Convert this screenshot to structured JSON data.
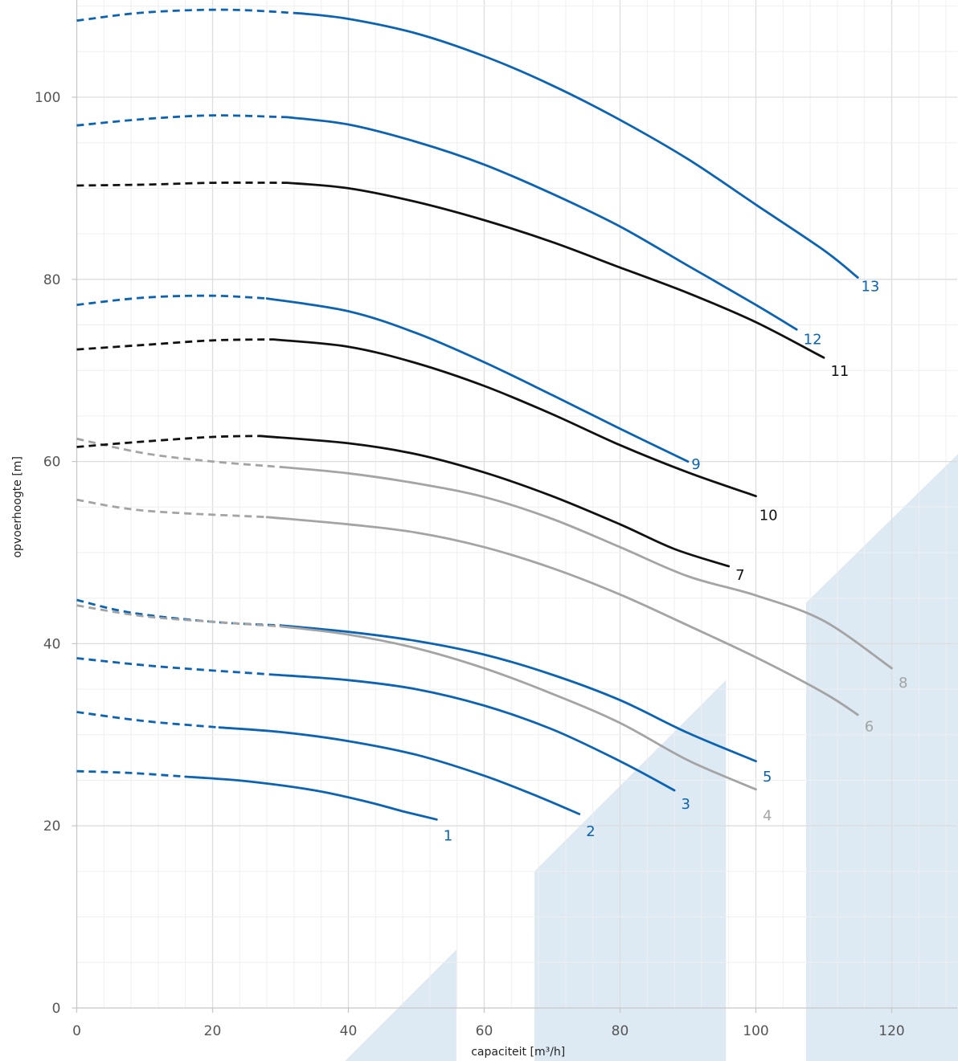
{
  "chart_data": {
    "type": "line",
    "xlabel": "capaciteit [m³/h]",
    "ylabel": "opvoerhoogte [m]",
    "xlim": [
      0,
      130
    ],
    "ylim": [
      0,
      110
    ],
    "x_ticks": [
      {
        "value": 0,
        "label": "0"
      },
      {
        "value": 20,
        "label": "20"
      },
      {
        "value": 40,
        "label": "40"
      },
      {
        "value": 60,
        "label": "60"
      },
      {
        "value": 80,
        "label": "80"
      },
      {
        "value": 100,
        "label": "100"
      },
      {
        "value": 120,
        "label": "120"
      }
    ],
    "y_ticks": [
      {
        "value": 0,
        "label": "0"
      },
      {
        "value": 20,
        "label": "20"
      },
      {
        "value": 40,
        "label": "40"
      },
      {
        "value": 60,
        "label": "60"
      },
      {
        "value": 80,
        "label": "80"
      },
      {
        "value": 100,
        "label": "100"
      }
    ],
    "minor_grid_x": 5,
    "minor_grid_y": 4,
    "grid": true,
    "colors": {
      "blue": "#0a63b4",
      "black": "#111111",
      "gray": "#a4a4a4",
      "region": "#dde9f3",
      "grid_major": "#dddddd",
      "grid_minor": "#efefef"
    },
    "shaded_regions": [
      {
        "points": [
          [
            39.5,
            -6
          ],
          [
            55.9,
            6.4
          ],
          [
            55.9,
            -6
          ]
        ]
      },
      {
        "points": [
          [
            67.4,
            -6
          ],
          [
            67.4,
            15
          ],
          [
            95.6,
            36
          ],
          [
            95.6,
            -6
          ]
        ]
      },
      {
        "points": [
          [
            107.4,
            -6
          ],
          [
            107.4,
            44.5
          ],
          [
            130,
            61
          ],
          [
            130,
            -6
          ]
        ]
      }
    ],
    "series": [
      {
        "label": "1",
        "color": "blue",
        "dashed": [
          [
            0,
            26.0
          ],
          [
            8,
            25.8
          ],
          [
            16,
            25.4
          ]
        ],
        "solid": [
          [
            16,
            25.4
          ],
          [
            25,
            24.9
          ],
          [
            35,
            23.9
          ],
          [
            43,
            22.6
          ],
          [
            48,
            21.6
          ],
          [
            53,
            20.7
          ]
        ],
        "label_at": [
          54,
          19.0
        ]
      },
      {
        "label": "2",
        "color": "blue",
        "dashed": [
          [
            0,
            32.5
          ],
          [
            10,
            31.5
          ],
          [
            21,
            30.8
          ]
        ],
        "solid": [
          [
            21,
            30.8
          ],
          [
            30,
            30.3
          ],
          [
            40,
            29.3
          ],
          [
            50,
            27.8
          ],
          [
            60,
            25.5
          ],
          [
            68,
            23.2
          ],
          [
            74,
            21.3
          ]
        ],
        "label_at": [
          75,
          19.5
        ]
      },
      {
        "label": "3",
        "color": "blue",
        "dashed": [
          [
            0,
            38.4
          ],
          [
            12,
            37.5
          ],
          [
            29,
            36.6
          ]
        ],
        "solid": [
          [
            29,
            36.6
          ],
          [
            40,
            36.0
          ],
          [
            50,
            35.0
          ],
          [
            60,
            33.2
          ],
          [
            70,
            30.6
          ],
          [
            80,
            27.1
          ],
          [
            88,
            23.9
          ]
        ],
        "label_at": [
          89,
          22.5
        ]
      },
      {
        "label": "5",
        "color": "blue",
        "dashed": [
          [
            0,
            44.8
          ],
          [
            8,
            43.4
          ],
          [
            20,
            42.4
          ],
          [
            30,
            42.0
          ]
        ],
        "solid": [
          [
            30,
            42.0
          ],
          [
            40,
            41.3
          ],
          [
            50,
            40.3
          ],
          [
            60,
            38.8
          ],
          [
            70,
            36.6
          ],
          [
            80,
            33.8
          ],
          [
            90,
            30.2
          ],
          [
            100,
            27.1
          ]
        ],
        "label_at": [
          101,
          25.5
        ]
      },
      {
        "label": "4",
        "color": "gray",
        "dashed": [
          [
            0,
            44.2
          ],
          [
            10,
            43.0
          ],
          [
            22,
            42.3
          ],
          [
            30,
            41.9
          ]
        ],
        "solid": [
          [
            30,
            41.9
          ],
          [
            40,
            41.0
          ],
          [
            50,
            39.5
          ],
          [
            60,
            37.3
          ],
          [
            70,
            34.5
          ],
          [
            80,
            31.3
          ],
          [
            90,
            27.2
          ],
          [
            100,
            24.0
          ]
        ],
        "label_at": [
          101,
          21.2
        ]
      },
      {
        "label": "6",
        "color": "gray",
        "dashed": [
          [
            0,
            55.8
          ],
          [
            10,
            54.6
          ],
          [
            28,
            53.9
          ]
        ],
        "solid": [
          [
            28,
            53.9
          ],
          [
            40,
            53.1
          ],
          [
            50,
            52.2
          ],
          [
            60,
            50.6
          ],
          [
            70,
            48.3
          ],
          [
            80,
            45.4
          ],
          [
            90,
            42.0
          ],
          [
            100,
            38.5
          ],
          [
            110,
            34.6
          ],
          [
            115,
            32.2
          ]
        ],
        "label_at": [
          116,
          31.0
        ]
      },
      {
        "label": "8",
        "color": "gray",
        "dashed": [
          [
            0,
            62.5
          ],
          [
            10,
            60.9
          ],
          [
            20,
            60.0
          ],
          [
            30,
            59.4
          ]
        ],
        "solid": [
          [
            30,
            59.4
          ],
          [
            40,
            58.7
          ],
          [
            50,
            57.6
          ],
          [
            60,
            56.1
          ],
          [
            70,
            53.7
          ],
          [
            80,
            50.6
          ],
          [
            90,
            47.4
          ],
          [
            100,
            45.3
          ],
          [
            110,
            42.5
          ],
          [
            120,
            37.3
          ]
        ],
        "label_at": [
          121,
          35.8
        ]
      },
      {
        "label": "7",
        "color": "black",
        "dashed": [
          [
            0,
            61.6
          ],
          [
            10,
            62.2
          ],
          [
            20,
            62.7
          ],
          [
            27,
            62.8
          ]
        ],
        "solid": [
          [
            27,
            62.8
          ],
          [
            40,
            62.0
          ],
          [
            50,
            60.8
          ],
          [
            60,
            58.8
          ],
          [
            70,
            56.2
          ],
          [
            80,
            53.1
          ],
          [
            88,
            50.4
          ],
          [
            96,
            48.5
          ]
        ],
        "label_at": [
          97,
          47.6
        ]
      },
      {
        "label": "10",
        "color": "black",
        "dashed": [
          [
            0,
            72.3
          ],
          [
            10,
            72.8
          ],
          [
            20,
            73.3
          ],
          [
            29,
            73.4
          ]
        ],
        "solid": [
          [
            29,
            73.4
          ],
          [
            40,
            72.6
          ],
          [
            50,
            70.8
          ],
          [
            60,
            68.3
          ],
          [
            70,
            65.2
          ],
          [
            80,
            61.8
          ],
          [
            90,
            58.8
          ],
          [
            100,
            56.2
          ]
        ],
        "label_at": [
          100.5,
          54.2
        ]
      },
      {
        "label": "9",
        "color": "blue",
        "dashed": [
          [
            0,
            77.2
          ],
          [
            10,
            78.0
          ],
          [
            20,
            78.2
          ],
          [
            28,
            77.9
          ]
        ],
        "solid": [
          [
            28,
            77.9
          ],
          [
            40,
            76.5
          ],
          [
            50,
            74.1
          ],
          [
            60,
            70.9
          ],
          [
            70,
            67.3
          ],
          [
            80,
            63.6
          ],
          [
            90,
            60.0
          ]
        ],
        "label_at": [
          90.5,
          59.8
        ]
      },
      {
        "label": "11",
        "color": "black",
        "dashed": [
          [
            0,
            90.3
          ],
          [
            10,
            90.4
          ],
          [
            20,
            90.6
          ],
          [
            31,
            90.6
          ]
        ],
        "solid": [
          [
            31,
            90.6
          ],
          [
            40,
            90.0
          ],
          [
            50,
            88.5
          ],
          [
            60,
            86.5
          ],
          [
            70,
            84.1
          ],
          [
            80,
            81.3
          ],
          [
            90,
            78.5
          ],
          [
            100,
            75.3
          ],
          [
            110,
            71.4
          ]
        ],
        "label_at": [
          111,
          70.0
        ]
      },
      {
        "label": "12",
        "color": "blue",
        "dashed": [
          [
            0,
            96.9
          ],
          [
            10,
            97.6
          ],
          [
            20,
            98.0
          ],
          [
            31,
            97.8
          ]
        ],
        "solid": [
          [
            31,
            97.8
          ],
          [
            40,
            97.0
          ],
          [
            50,
            95.1
          ],
          [
            60,
            92.6
          ],
          [
            70,
            89.4
          ],
          [
            80,
            85.8
          ],
          [
            90,
            81.5
          ],
          [
            100,
            77.2
          ],
          [
            106,
            74.5
          ]
        ],
        "label_at": [
          107,
          73.5
        ]
      },
      {
        "label": "13",
        "color": "blue",
        "dashed": [
          [
            0,
            108.4
          ],
          [
            10,
            109.3
          ],
          [
            22,
            109.6
          ],
          [
            33,
            109.2
          ]
        ],
        "solid": [
          [
            33,
            109.2
          ],
          [
            40,
            108.6
          ],
          [
            50,
            107.0
          ],
          [
            60,
            104.5
          ],
          [
            70,
            101.3
          ],
          [
            80,
            97.5
          ],
          [
            90,
            93.2
          ],
          [
            100,
            88.2
          ],
          [
            110,
            83.2
          ],
          [
            115,
            80.2
          ]
        ],
        "label_at": [
          115.5,
          79.3
        ]
      }
    ]
  }
}
